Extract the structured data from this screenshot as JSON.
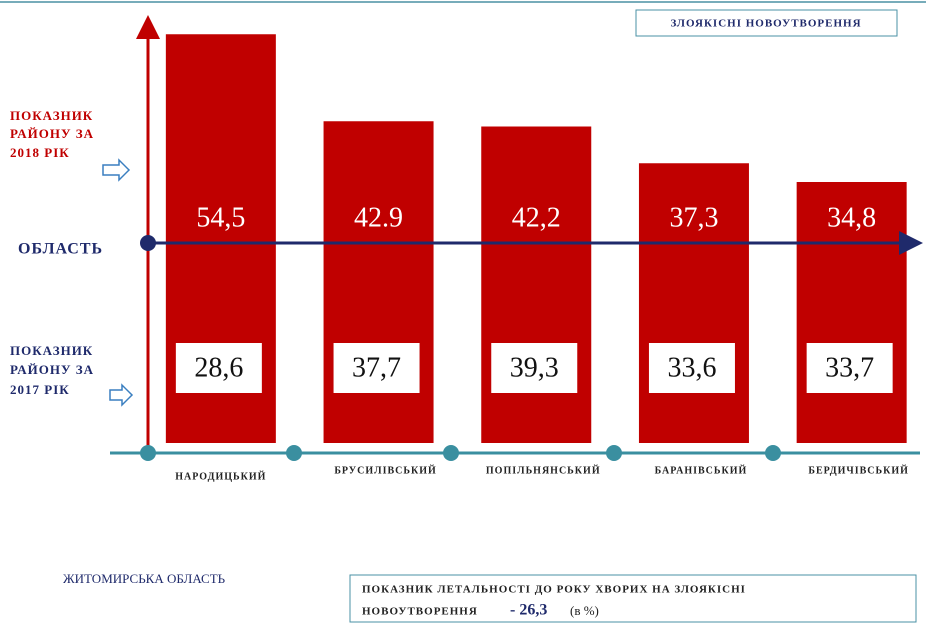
{
  "chart_data": {
    "type": "bar",
    "title": "ЗЛОЯКІСНІ НОВОУТВОРЕННЯ",
    "categories": [
      "НАРОДИЦЬКИЙ",
      "БРУСИЛІВСЬКИЙ",
      "ПОПІЛЬНЯНСЬКИЙ",
      "БАРАНІВСЬКИЙ",
      "БЕРДИЧІВСЬКИЙ"
    ],
    "ylim": [
      0,
      56
    ],
    "series": [
      {
        "legend_lines": [
          "ПОКАЗНИК",
          "РАЙОНУ ЗА",
          "2018 РІК"
        ],
        "color": "#c00000",
        "values": [
          54.5,
          42.9,
          42.2,
          37.3,
          34.8
        ],
        "value_labels": [
          "54,5",
          "42.9",
          "42,2",
          "37,3",
          "34,8"
        ]
      },
      {
        "legend_lines": [
          "ПОКАЗНИК",
          "РАЙОНУ ЗА",
          "2017 РІК"
        ],
        "color": "#ffffff",
        "values": [
          28.6,
          37.7,
          39.3,
          33.6,
          33.7
        ],
        "value_labels": [
          "28,6",
          "37,7",
          "39,3",
          "33,6",
          "33,7"
        ]
      }
    ],
    "reference_label": "ОБЛАСТЬ",
    "footer_left": "ЖИТОМИРСЬКА ОБЛАСТЬ",
    "note": {
      "line1": "ПОКАЗНИК ЛЕТАЛЬНОСТІ ДО РОКУ ХВОРИХ НА ЗЛОЯКІСНІ",
      "line2": "НОВОУТВОРЕННЯ",
      "value": "- 26,3",
      "unit": "(в %)"
    }
  }
}
